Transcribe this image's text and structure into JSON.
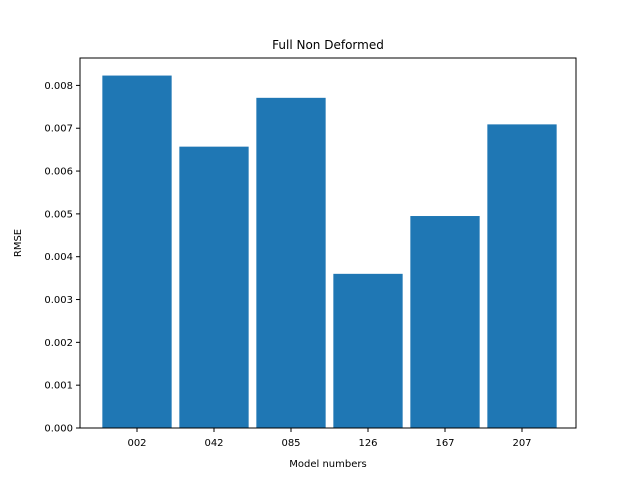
{
  "chart_data": {
    "type": "bar",
    "title": "Full Non Deformed",
    "xlabel": "Model numbers",
    "ylabel": "RMSE",
    "categories": [
      "002",
      "042",
      "085",
      "126",
      "167",
      "207"
    ],
    "values": [
      0.00823,
      0.00657,
      0.00771,
      0.0036,
      0.00495,
      0.00709
    ],
    "ylim": [
      0,
      0.00864
    ],
    "yticks": [
      0.0,
      0.001,
      0.002,
      0.003,
      0.004,
      0.005,
      0.006,
      0.007,
      0.008
    ],
    "ytick_labels": [
      "0.000",
      "0.001",
      "0.002",
      "0.003",
      "0.004",
      "0.005",
      "0.006",
      "0.007",
      "0.008"
    ],
    "bar_color": "#1f77b4",
    "grid": false,
    "legend": "none"
  }
}
